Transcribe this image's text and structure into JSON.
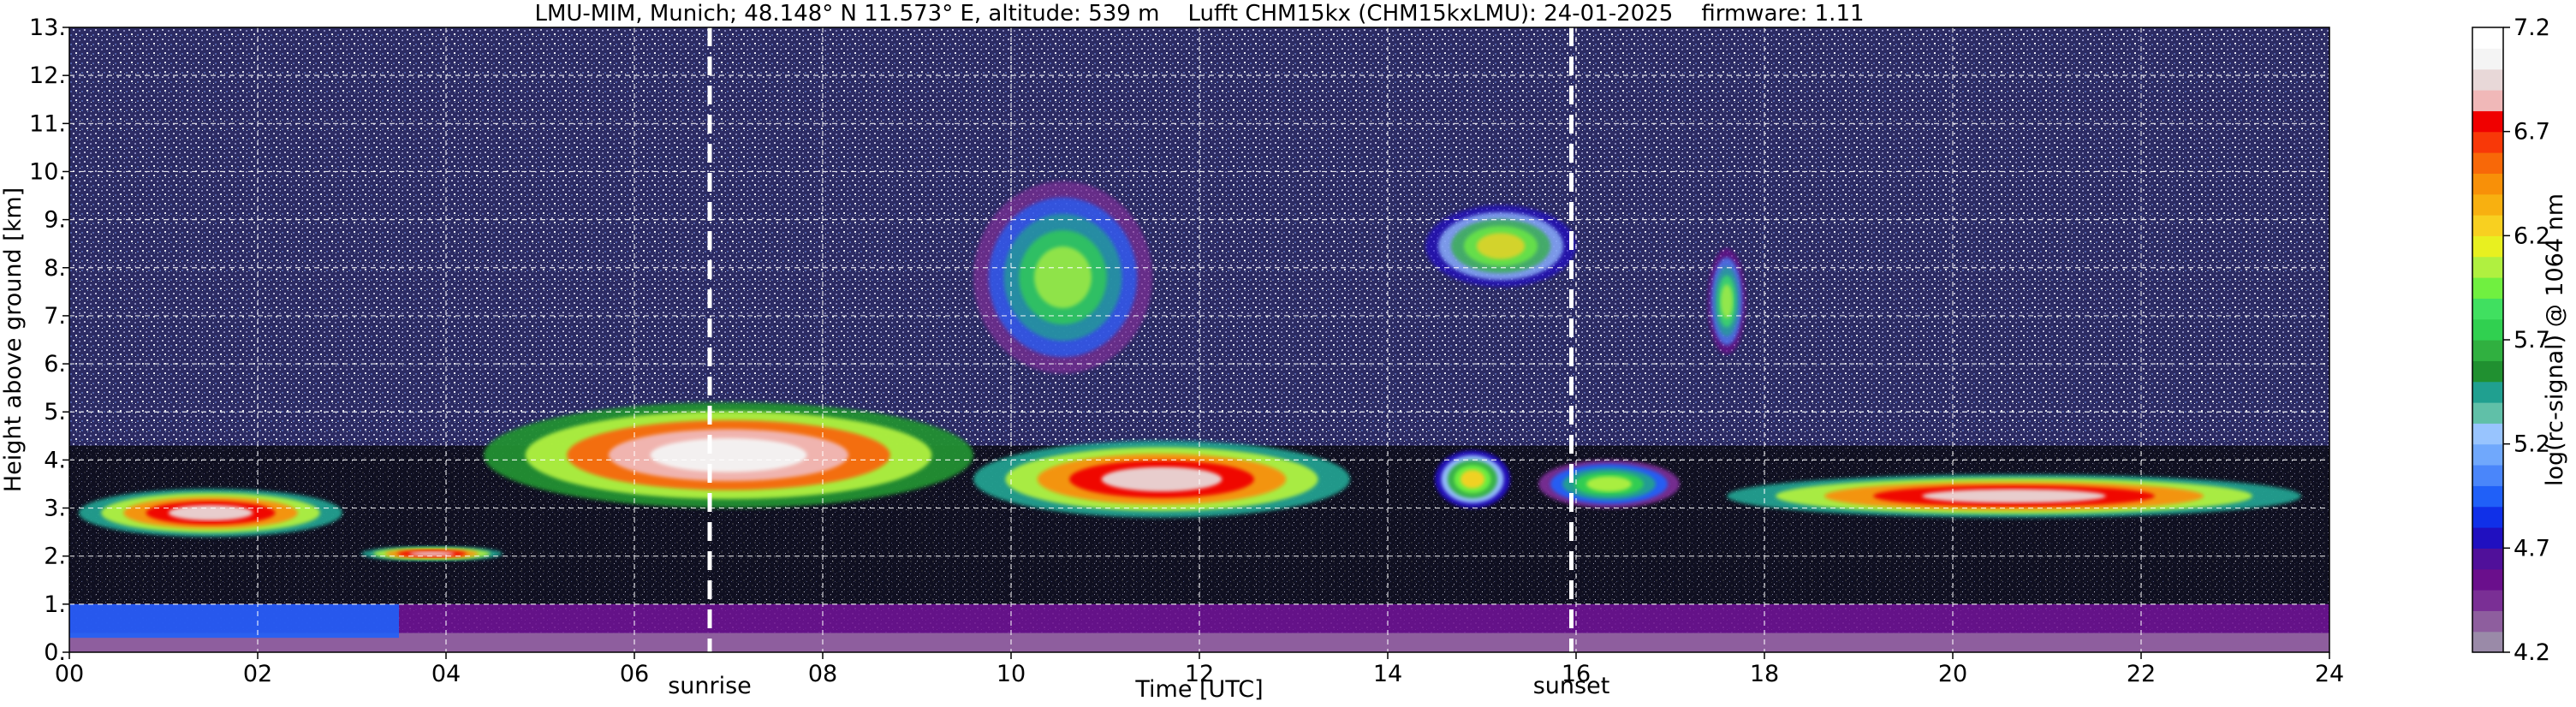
{
  "chart_data": {
    "type": "heatmap",
    "title": "LMU-MIM, Munich; 48.148° N 11.573° E, altitude: 539 m    Lufft CHM15kx (CHM15kxLMU): 24-01-2025    firmware: 1.11",
    "xlabel": "Time [UTC]",
    "ylabel": "Height above ground [km]",
    "xlim": [
      0,
      24
    ],
    "ylim": [
      0,
      13
    ],
    "x_ticks": [
      {
        "value": 0,
        "label": "00"
      },
      {
        "value": 2,
        "label": "02"
      },
      {
        "value": 4,
        "label": "04"
      },
      {
        "value": 6,
        "label": "06"
      },
      {
        "value": 8,
        "label": "08"
      },
      {
        "value": 10,
        "label": "10"
      },
      {
        "value": 12,
        "label": "12"
      },
      {
        "value": 14,
        "label": "14"
      },
      {
        "value": 16,
        "label": "16"
      },
      {
        "value": 18,
        "label": "18"
      },
      {
        "value": 20,
        "label": "20"
      },
      {
        "value": 22,
        "label": "22"
      },
      {
        "value": 24,
        "label": "24"
      }
    ],
    "y_ticks": [
      {
        "value": 0,
        "label": "0."
      },
      {
        "value": 1,
        "label": "1."
      },
      {
        "value": 2,
        "label": "2."
      },
      {
        "value": 3,
        "label": "3."
      },
      {
        "value": 4,
        "label": "4."
      },
      {
        "value": 5,
        "label": "5."
      },
      {
        "value": 6,
        "label": "6."
      },
      {
        "value": 7,
        "label": "7."
      },
      {
        "value": 8,
        "label": "8."
      },
      {
        "value": 9,
        "label": "9."
      },
      {
        "value": 10,
        "label": "10."
      },
      {
        "value": 11,
        "label": "11."
      },
      {
        "value": 12,
        "label": "12."
      },
      {
        "value": 13,
        "label": "13."
      }
    ],
    "grid": true,
    "markers": [
      {
        "label": "sunrise",
        "x": 6.8
      },
      {
        "label": "sunset",
        "x": 15.95
      }
    ],
    "colorbar": {
      "label": "log(rc-signal) @ 1064 nm",
      "range": [
        4.2,
        7.2
      ],
      "ticks": [
        {
          "value": 4.2,
          "label": "4.2"
        },
        {
          "value": 4.7,
          "label": "4.7"
        },
        {
          "value": 5.2,
          "label": "5.2"
        },
        {
          "value": 5.7,
          "label": "5.7"
        },
        {
          "value": 6.2,
          "label": "6.2"
        },
        {
          "value": 6.7,
          "label": "6.7"
        },
        {
          "value": 7.2,
          "label": "7.2"
        }
      ],
      "colors": [
        "#9a8aa8",
        "#8e5e9e",
        "#7a2f95",
        "#6a0f8c",
        "#50109a",
        "#2010c0",
        "#1030e8",
        "#2060f8",
        "#4a86fa",
        "#70a8fc",
        "#98c4fe",
        "#60c0a8",
        "#20a090",
        "#209030",
        "#30b040",
        "#30d050",
        "#40e060",
        "#70f040",
        "#b0f040",
        "#e8f020",
        "#f8d020",
        "#f8b010",
        "#f89008",
        "#f86808",
        "#f83808",
        "#f00000",
        "#f0b8b8",
        "#e8d8d8",
        "#f4f4f4",
        "#ffffff"
      ]
    },
    "features": [
      {
        "type": "cloud",
        "t_start": 0.1,
        "t_end": 2.9,
        "h_bottom": 2.4,
        "h_top": 3.4,
        "level": 7.0
      },
      {
        "type": "cloud",
        "t_start": 3.1,
        "t_end": 4.6,
        "h_bottom": 1.9,
        "h_top": 2.2,
        "level": 7.0
      },
      {
        "type": "cloud",
        "t_start": 4.4,
        "t_end": 9.6,
        "h_bottom": 3.0,
        "h_top": 5.2,
        "level": 7.1
      },
      {
        "type": "cloud",
        "t_start": 9.6,
        "t_end": 13.6,
        "h_bottom": 2.8,
        "h_top": 4.4,
        "level": 7.0
      },
      {
        "type": "cloud",
        "t_start": 14.5,
        "t_end": 15.3,
        "h_bottom": 3.0,
        "h_top": 4.2,
        "level": 6.2
      },
      {
        "type": "cloud",
        "t_start": 15.6,
        "t_end": 17.1,
        "h_bottom": 3.0,
        "h_top": 4.0,
        "level": 6.0
      },
      {
        "type": "cloud",
        "t_start": 17.6,
        "t_end": 23.7,
        "h_bottom": 2.8,
        "h_top": 3.7,
        "level": 7.0
      },
      {
        "type": "cirrus",
        "t_start": 9.6,
        "t_end": 11.5,
        "h_bottom": 5.8,
        "h_top": 9.8,
        "level": 6.0
      },
      {
        "type": "cirrus",
        "t_start": 14.4,
        "t_end": 16.0,
        "h_bottom": 7.6,
        "h_top": 9.3,
        "level": 6.2
      },
      {
        "type": "cirrus",
        "t_start": 17.4,
        "t_end": 17.8,
        "h_bottom": 6.2,
        "h_top": 8.4,
        "level": 6.1
      },
      {
        "type": "boundary_layer",
        "t_start": 0,
        "t_end": 24,
        "h_bottom": 0.0,
        "h_top": 1.0,
        "level": 4.6
      }
    ]
  }
}
